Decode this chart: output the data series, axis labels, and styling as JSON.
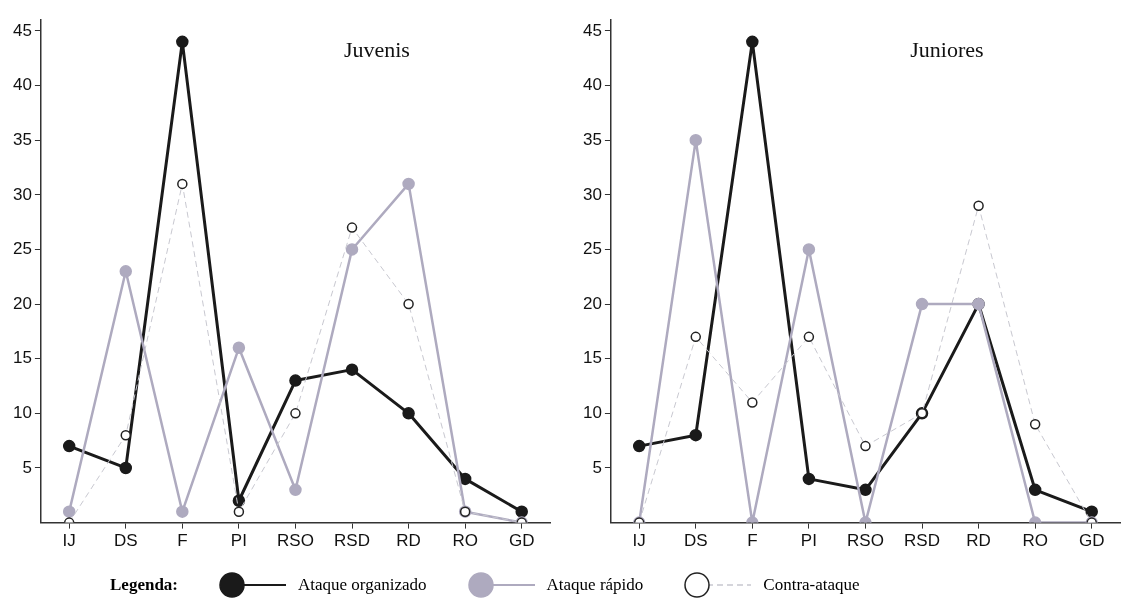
{
  "chart_data": [
    {
      "type": "line",
      "title": "Juvenis",
      "categories": [
        "IJ",
        "DS",
        "F",
        "PI",
        "RSO",
        "RSD",
        "RD",
        "RO",
        "GD"
      ],
      "legend_title": "Legenda:",
      "legend": "bottom",
      "marker": "circle",
      "grid": false,
      "ylim": [
        0,
        46
      ],
      "yticks": [
        5,
        10,
        15,
        20,
        25,
        30,
        35,
        40,
        45
      ],
      "series": [
        {
          "name": "Ataque organizado",
          "color": "#1a1a1a",
          "values": [
            7,
            5,
            44,
            2,
            13,
            14,
            10,
            4,
            1
          ]
        },
        {
          "name": "Ataque rápido",
          "color": "#aeaabf",
          "values": [
            1,
            23,
            1,
            16,
            3,
            25,
            31,
            1,
            0
          ]
        },
        {
          "name": "Contra-ataque",
          "color": "#c8c8d0",
          "line_style": "dashed",
          "values": [
            0,
            8,
            31,
            1,
            10,
            27,
            20,
            1,
            0
          ]
        }
      ]
    },
    {
      "type": "line",
      "title": "Juniores",
      "categories": [
        "IJ",
        "DS",
        "F",
        "PI",
        "RSO",
        "RSD",
        "RD",
        "RO",
        "GD"
      ],
      "marker": "circle",
      "grid": false,
      "ylim": [
        0,
        46
      ],
      "yticks": [
        5,
        10,
        15,
        20,
        25,
        30,
        35,
        40,
        45
      ],
      "series": [
        {
          "color": "#1a1a1a",
          "values": [
            7,
            8,
            44,
            4,
            3,
            10,
            20,
            3,
            1
          ]
        },
        {
          "color": "#aeaabf",
          "values": [
            0,
            35,
            0,
            25,
            0,
            20,
            20,
            0,
            0
          ]
        },
        {
          "color": "#c8c8d0",
          "line_style": "dashed",
          "values": [
            0,
            17,
            11,
            17,
            7,
            10,
            29,
            9,
            0
          ]
        }
      ]
    }
  ]
}
